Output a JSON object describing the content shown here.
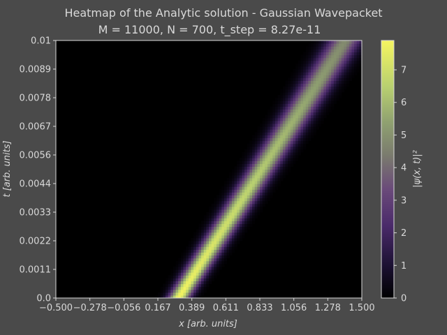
{
  "chart_data": {
    "type": "heatmap",
    "title": "Heatmap of the Analytic solution - Gaussian Wavepacket",
    "subtitle": "M = 11000, N = 700, t_step = 8.27e-11",
    "xlabel": "x [arb. units]",
    "ylabel": "t [arb. units]",
    "colorbar_label": "|ψ(x, t)|²",
    "xlim": [
      -0.5,
      1.5
    ],
    "ylim": [
      0.0,
      0.01
    ],
    "x_ticks": [
      "−0.500",
      "−0.278",
      "−0.056",
      "0.167",
      "0.389",
      "0.611",
      "0.833",
      "1.056",
      "1.278",
      "1.500"
    ],
    "y_ticks": [
      "0.0",
      "0.0011",
      "0.0022",
      "0.0033",
      "0.0044",
      "0.0056",
      "0.0067",
      "0.0078",
      "0.0089",
      "0.01"
    ],
    "colorbar_ticks": [
      "0",
      "1",
      "2",
      "3",
      "4",
      "5",
      "6",
      "7"
    ],
    "colorbar_range": [
      0,
      7.9
    ],
    "colormap": "inferno-like (black → purple → olive → yellow)",
    "wavepacket": {
      "center_x_at_t0": 0.3,
      "center_x_at_t_max": 1.39,
      "peak_value_at_t0": 7.9,
      "peak_value_at_t_max": 4.8
    },
    "grid": false
  }
}
